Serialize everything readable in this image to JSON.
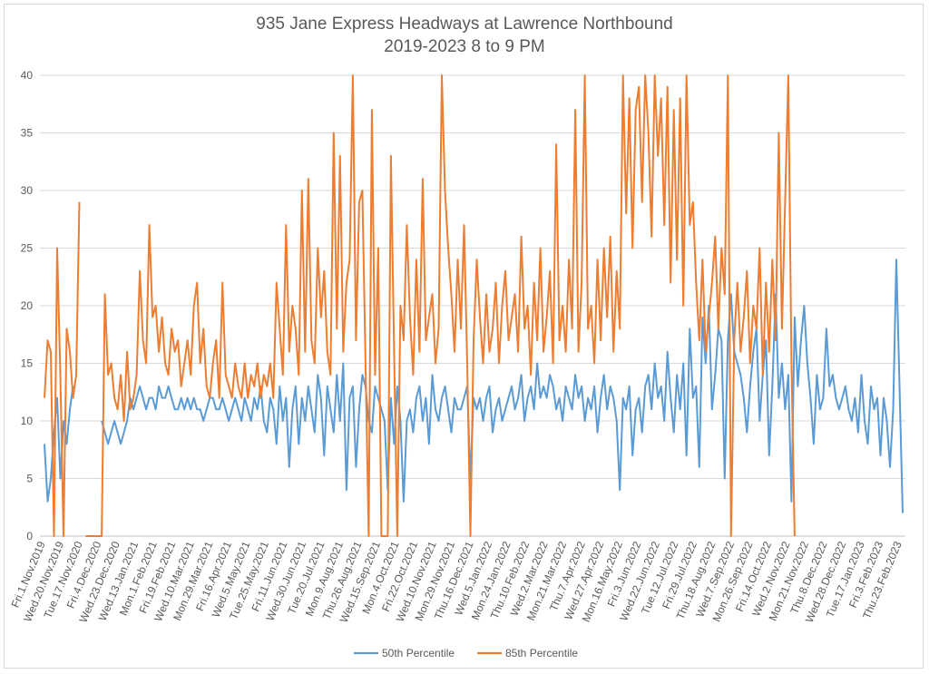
{
  "chart_data": {
    "type": "line",
    "title": [
      "935 Jane Express Headways at Lawrence Northbound",
      "2019-2023 8 to 9 PM"
    ],
    "xlabel": "",
    "ylabel": "",
    "ylim": [
      0,
      40
    ],
    "yticks": [
      0,
      5,
      10,
      15,
      20,
      25,
      30,
      35,
      40
    ],
    "grid": true,
    "legend_position": "bottom",
    "x_tick_labels": [
      "Fri.1.Nov.2019",
      "Wed.20.Nov.2019",
      "Tue.17.Nov.2020",
      "Fri.4.Dec.2020",
      "Wed.23.Dec.2020",
      "Wed.13.Jan.2021",
      "Mon.1.Feb.2021",
      "Fri.19.Feb.2021",
      "Wed.10.Mar.2021",
      "Mon.29.Mar.2021",
      "Fri.16.Apr.2021",
      "Wed.5.May.2021",
      "Tue.25.May.2021",
      "Fri.11.Jun.2021",
      "Wed.30.Jun.2021",
      "Tue.20.Jul.2021",
      "Mon.9.Aug.2021",
      "Thu.26.Aug.2021",
      "Wed.15.Sep.2021",
      "Mon.4.Oct.2021",
      "Fri.22.Oct.2021",
      "Wed.10.Nov.2021",
      "Mon.29.Nov.2021",
      "Thu.16.Dec.2021",
      "Wed.5.Jan.2022",
      "Mon.24.Jan.2022",
      "Thu.10.Feb.2022",
      "Wed.2.Mar.2022",
      "Mon.21.Mar.2022",
      "Thu.7.Apr.2022",
      "Wed.27.Apr.2022",
      "Mon.16.May.2022",
      "Fri.3.Jun.2022",
      "Wed.22.Jun.2022",
      "Tue.12.Jul.2022",
      "Fri.29.Jul.2022",
      "Thu.18.Aug.2022",
      "Wed.7.Sep.2022",
      "Mon.26.Sep.2022",
      "Fri.14.Oct.2022",
      "Wed.2.Nov.2022",
      "Mon.21.Nov.2022",
      "Thu.8.Dec.2022",
      "Wed.28.Dec.2022",
      "Tue.17.Jan.2023",
      "Fri.3.Feb.2023",
      "Thu.23.Feb.2023"
    ],
    "series": [
      {
        "name": "50th Percentile",
        "color": "#5b9bd5",
        "values": [
          8,
          3,
          5,
          9,
          12,
          5,
          10,
          8,
          11,
          13,
          null,
          null,
          null,
          null,
          null,
          null,
          null,
          null,
          10,
          9,
          8,
          9,
          10,
          9,
          8,
          9,
          10,
          12,
          11,
          12,
          13,
          12,
          11,
          12,
          12,
          11,
          13,
          12,
          12,
          13,
          12,
          11,
          11,
          12,
          11,
          12,
          11,
          12,
          11,
          11,
          10,
          11,
          12,
          12,
          11,
          11,
          12,
          11,
          10,
          11,
          12,
          11,
          10,
          12,
          11,
          10,
          12,
          11,
          13,
          10,
          9,
          12,
          11,
          8,
          13,
          10,
          12,
          6,
          11,
          13,
          8,
          12,
          10,
          13,
          11,
          9,
          14,
          12,
          7,
          13,
          11,
          9,
          14,
          10,
          15,
          4,
          12,
          13,
          6,
          11,
          14,
          13,
          10,
          9,
          13,
          12,
          11,
          10,
          4,
          12,
          8,
          13,
          10,
          3,
          10,
          11,
          9,
          12,
          13,
          10,
          12,
          8,
          14,
          11,
          10,
          12,
          13,
          11,
          9,
          12,
          11,
          11,
          12,
          13,
          5,
          12,
          11,
          12,
          10,
          12,
          13,
          9,
          11,
          12,
          10,
          11,
          12,
          13,
          11,
          12,
          14,
          10,
          12,
          13,
          11,
          15,
          12,
          13,
          12,
          14,
          13,
          11,
          12,
          10,
          13,
          12,
          11,
          14,
          12,
          13,
          10,
          12,
          11,
          13,
          9,
          12,
          14,
          11,
          13,
          12,
          10,
          4,
          12,
          11,
          13,
          7,
          11,
          12,
          9,
          13,
          14,
          11,
          15,
          12,
          13,
          10,
          16,
          12,
          9,
          14,
          11,
          15,
          7,
          18,
          12,
          13,
          6,
          19,
          15,
          20,
          11,
          14,
          18,
          17,
          5,
          17,
          21,
          16,
          15,
          14,
          12,
          9,
          13,
          16,
          18,
          10,
          14,
          17,
          7,
          13,
          21,
          12,
          15,
          11,
          14,
          3,
          19,
          13,
          17,
          20,
          15,
          12,
          8,
          14,
          11,
          12,
          18,
          13,
          14,
          12,
          11,
          12,
          13,
          11,
          10,
          12,
          9,
          14,
          10,
          8,
          13,
          11,
          12,
          7,
          12,
          10,
          6,
          11,
          24,
          13,
          2
        ]
      },
      {
        "name": "85th Percentile",
        "color": "#ed7d31",
        "values": [
          12,
          17,
          16,
          0,
          25,
          14,
          0,
          18,
          16,
          12,
          14,
          29,
          null,
          0,
          0,
          0,
          0,
          0,
          0,
          21,
          14,
          15,
          12,
          11,
          14,
          10,
          16,
          11,
          12,
          14,
          23,
          17,
          15,
          27,
          19,
          20,
          16,
          19,
          15,
          14,
          18,
          16,
          17,
          13,
          15,
          17,
          14,
          20,
          22,
          15,
          18,
          13,
          12,
          15,
          17,
          12,
          22,
          14,
          13,
          12,
          15,
          13,
          12,
          15,
          12,
          14,
          13,
          15,
          12,
          14,
          13,
          15,
          12,
          22,
          18,
          14,
          27,
          16,
          20,
          18,
          14,
          30,
          16,
          31,
          17,
          15,
          25,
          19,
          23,
          16,
          14,
          35,
          18,
          33,
          16,
          22,
          24,
          40,
          17,
          29,
          30,
          15,
          0,
          37,
          14,
          25,
          0,
          0,
          0,
          33,
          16,
          0,
          20,
          17,
          27,
          19,
          14,
          24,
          16,
          31,
          17,
          19,
          21,
          15,
          18,
          40,
          30,
          25,
          21,
          16,
          24,
          18,
          27,
          15,
          0,
          17,
          24,
          19,
          15,
          21,
          16,
          18,
          22,
          15,
          20,
          23,
          17,
          19,
          21,
          16,
          26,
          18,
          20,
          14,
          22,
          17,
          25,
          16,
          19,
          23,
          15,
          34,
          17,
          20,
          16,
          24,
          18,
          37,
          16,
          22,
          40,
          18,
          20,
          15,
          24,
          17,
          25,
          19,
          26,
          16,
          23,
          18,
          40,
          28,
          38,
          25,
          37,
          39,
          29,
          40,
          35,
          26,
          40,
          33,
          38,
          27,
          39,
          22,
          37,
          24,
          38,
          20,
          40,
          27,
          29,
          22,
          17,
          24,
          16,
          19,
          22,
          26,
          18,
          25,
          21,
          40,
          0,
          17,
          22,
          16,
          19,
          23,
          15,
          20,
          18,
          25,
          14,
          22,
          16,
          24,
          17,
          35,
          18,
          29,
          40,
          15,
          0
        ],
        "annotation_note": ""
      }
    ]
  },
  "legend": {
    "series1_label": "50th Percentile",
    "series2_label": "85th Percentile"
  }
}
